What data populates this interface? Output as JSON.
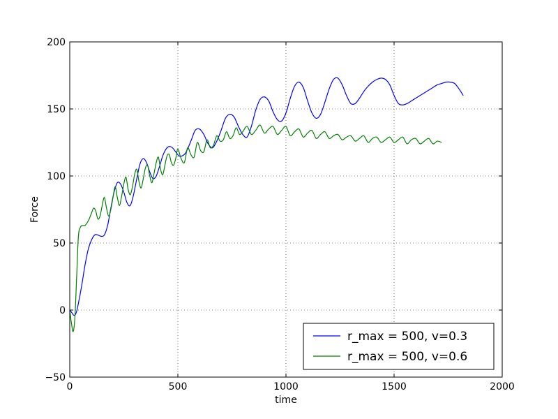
{
  "chart_data": {
    "type": "line",
    "title": "",
    "xlabel": "time",
    "ylabel": "Force",
    "xlim": [
      0,
      2000
    ],
    "ylim": [
      -50,
      200
    ],
    "xticks": [
      0,
      500,
      1000,
      1500,
      2000
    ],
    "yticks": [
      -50,
      0,
      50,
      100,
      150,
      200
    ],
    "xtick_labels": [
      "0",
      "500",
      "1000",
      "1500",
      "2000"
    ],
    "ytick_labels": [
      "−50",
      "0",
      "50",
      "100",
      "150",
      "200"
    ],
    "grid": true,
    "legend_position": "lower-right",
    "series": [
      {
        "name": "r_max = 500, v=0.3",
        "color": "#0000ff",
        "x": [
          0,
          10,
          20,
          30,
          40,
          55,
          70,
          85,
          100,
          115,
          130,
          145,
          160,
          175,
          190,
          205,
          220,
          235,
          250,
          265,
          280,
          295,
          310,
          325,
          340,
          355,
          370,
          385,
          400,
          415,
          430,
          445,
          460,
          475,
          490,
          505,
          520,
          535,
          550,
          565,
          580,
          600,
          620,
          640,
          660,
          680,
          700,
          720,
          740,
          760,
          780,
          800,
          820,
          840,
          860,
          880,
          900,
          920,
          940,
          960,
          980,
          1000,
          1020,
          1040,
          1060,
          1080,
          1100,
          1120,
          1140,
          1160,
          1180,
          1200,
          1220,
          1240,
          1260,
          1280,
          1300,
          1320,
          1340,
          1360,
          1380,
          1400,
          1420,
          1440,
          1460,
          1480,
          1500,
          1520,
          1540,
          1560,
          1580,
          1600,
          1620,
          1640,
          1660,
          1680,
          1700,
          1720,
          1740,
          1760,
          1780,
          1800,
          1820
        ],
        "y": [
          0,
          -2,
          -4,
          -2,
          5,
          18,
          33,
          45,
          52,
          56,
          56,
          55,
          56,
          63,
          76,
          88,
          95,
          94,
          88,
          80,
          78,
          86,
          98,
          109,
          113,
          110,
          103,
          98,
          100,
          107,
          115,
          120,
          122,
          121,
          118,
          115,
          115,
          117,
          122,
          128,
          134,
          135,
          131,
          124,
          121,
          126,
          134,
          143,
          146,
          144,
          137,
          131,
          129,
          137,
          149,
          157,
          159,
          156,
          148,
          142,
          141,
          147,
          158,
          167,
          170,
          166,
          156,
          147,
          143,
          146,
          155,
          165,
          172,
          173,
          168,
          160,
          154,
          154,
          158,
          163,
          167,
          170,
          172,
          173,
          172,
          168,
          160,
          154,
          153,
          154,
          156,
          158,
          160,
          162,
          164,
          166,
          168,
          169,
          170,
          170,
          169,
          165,
          160
        ]
      },
      {
        "name": "r_max = 500, v=0.6",
        "color": "#008000",
        "x": [
          0,
          8,
          16,
          24,
          32,
          40,
          50,
          60,
          70,
          80,
          90,
          100,
          110,
          120,
          130,
          140,
          150,
          160,
          170,
          180,
          190,
          200,
          210,
          220,
          230,
          240,
          250,
          260,
          270,
          280,
          290,
          300,
          310,
          320,
          330,
          340,
          350,
          360,
          370,
          380,
          390,
          400,
          410,
          420,
          430,
          440,
          450,
          460,
          470,
          480,
          490,
          500,
          515,
          530,
          545,
          560,
          575,
          590,
          605,
          620,
          635,
          650,
          665,
          680,
          695,
          710,
          725,
          740,
          755,
          770,
          785,
          800,
          820,
          840,
          860,
          880,
          900,
          920,
          940,
          960,
          980,
          1000,
          1020,
          1040,
          1060,
          1080,
          1100,
          1120,
          1140,
          1160,
          1180,
          1200,
          1220,
          1240,
          1260,
          1280,
          1300,
          1320,
          1340,
          1360,
          1380,
          1400,
          1420,
          1440,
          1460,
          1480,
          1500,
          1520,
          1540,
          1560,
          1580,
          1600,
          1620,
          1640,
          1660,
          1680,
          1700,
          1720
        ],
        "y": [
          0,
          -10,
          -16,
          -5,
          25,
          55,
          62,
          63,
          63,
          65,
          68,
          72,
          76,
          74,
          68,
          70,
          78,
          84,
          76,
          70,
          75,
          84,
          92,
          84,
          78,
          85,
          94,
          99,
          90,
          86,
          92,
          101,
          105,
          96,
          91,
          98,
          106,
          108,
          100,
          95,
          102,
          110,
          114,
          105,
          101,
          108,
          115,
          116,
          110,
          108,
          113,
          120,
          113,
          110,
          121,
          116,
          114,
          125,
          119,
          118,
          127,
          121,
          123,
          130,
          126,
          127,
          133,
          128,
          130,
          136,
          131,
          133,
          137,
          131,
          134,
          138,
          132,
          135,
          137,
          131,
          134,
          137,
          130,
          133,
          135,
          129,
          132,
          134,
          128,
          131,
          133,
          128,
          130,
          131,
          127,
          129,
          130,
          126,
          128,
          130,
          125,
          128,
          129,
          125,
          127,
          129,
          125,
          127,
          129,
          124,
          127,
          128,
          124,
          126,
          128,
          124,
          126,
          125
        ]
      }
    ]
  }
}
